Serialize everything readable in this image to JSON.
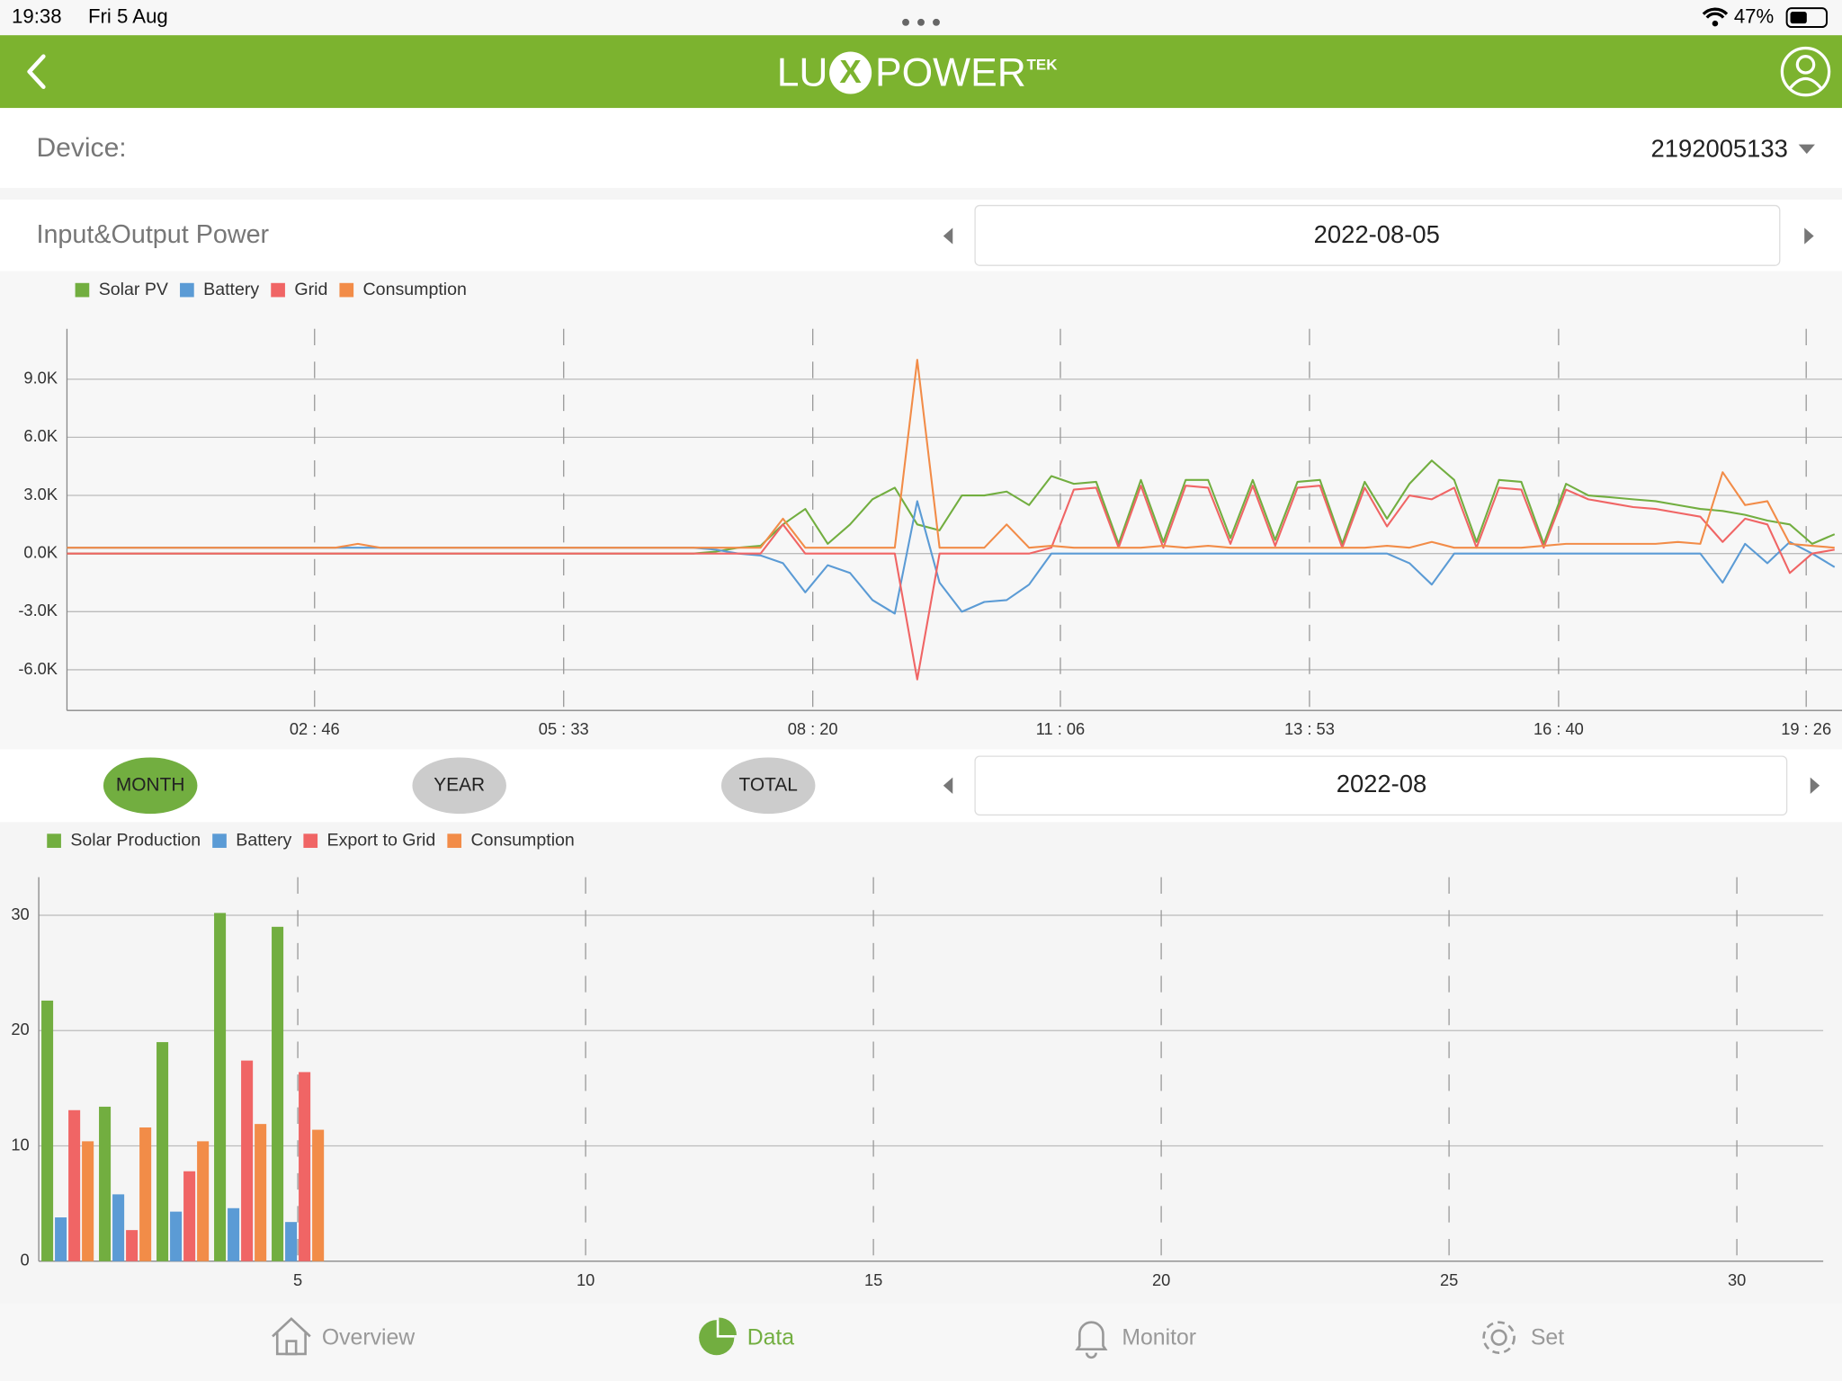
{
  "status_bar": {
    "time": "19:38",
    "date": "Fri 5 Aug",
    "battery": "47%"
  },
  "header": {
    "logo": [
      "LU",
      "X",
      "POWER"
    ],
    "logo_suffix": "TEK"
  },
  "device": {
    "label": "Device:",
    "id": "2192005133"
  },
  "power": {
    "title": "Input&Output Power",
    "date": "2022-08-05"
  },
  "period_tabs": [
    "MONTH",
    "YEAR",
    "TOTAL"
  ],
  "month_date": "2022-08",
  "nav": [
    "Overview",
    "Data",
    "Monitor",
    "Set"
  ],
  "chart_data": [
    {
      "type": "line",
      "x": [
        0,
        15,
        30,
        45,
        60,
        75,
        90,
        105,
        120,
        135,
        150,
        165,
        180,
        195,
        210,
        225,
        240,
        255,
        270,
        285,
        300,
        315,
        330,
        345,
        360,
        375,
        390,
        405,
        420,
        435,
        450,
        465,
        480,
        495,
        510,
        525,
        540,
        555,
        570,
        585,
        600,
        615,
        630,
        645,
        660,
        675,
        690,
        705,
        720,
        735,
        750,
        765,
        780,
        795,
        810,
        825,
        840,
        855,
        870,
        885,
        900,
        915,
        930,
        945,
        960,
        975,
        990,
        1005,
        1020,
        1035,
        1050,
        1065,
        1080,
        1095,
        1110,
        1125,
        1140,
        1155,
        1170,
        1185
      ],
      "xlim": [
        0,
        1190
      ],
      "xticks": [
        {
          "value": 166,
          "label": "02 : 46"
        },
        {
          "value": 333,
          "label": "05 : 33"
        },
        {
          "value": 500,
          "label": "08 : 20"
        },
        {
          "value": 666,
          "label": "11 : 06"
        },
        {
          "value": 833,
          "label": "13 : 53"
        },
        {
          "value": 1000,
          "label": "16 : 40"
        },
        {
          "value": 1166,
          "label": "19 : 26"
        }
      ],
      "ylim": [
        -8100,
        11600
      ],
      "yticks": [
        {
          "value": -6000,
          "label": "-6.0K"
        },
        {
          "value": -3000,
          "label": "-3.0K"
        },
        {
          "value": 0,
          "label": "0.0K"
        },
        {
          "value": 3000,
          "label": "3.0K"
        },
        {
          "value": 6000,
          "label": "6.0K"
        },
        {
          "value": 9000,
          "label": "9.0K"
        }
      ],
      "grid": true,
      "series": [
        {
          "name": "Solar PV",
          "color": "#72ae40",
          "values": [
            0,
            0,
            0,
            0,
            0,
            0,
            0,
            0,
            0,
            0,
            0,
            0,
            0,
            0,
            0,
            0,
            0,
            0,
            0,
            0,
            0,
            0,
            0,
            0,
            0,
            0,
            0,
            0,
            0,
            100,
            300,
            400,
            1500,
            2300,
            500,
            1500,
            2800,
            3400,
            1500,
            1200,
            3000,
            3000,
            3200,
            2500,
            4000,
            3600,
            3700,
            500,
            3800,
            600,
            3800,
            3800,
            800,
            3800,
            700,
            3700,
            3800,
            500,
            3700,
            1800,
            3600,
            4800,
            3800,
            600,
            3800,
            3700,
            500,
            3600,
            3000,
            2900,
            2800,
            2700,
            2500,
            2300,
            2200,
            2000,
            1700,
            1500,
            500,
            1000
          ]
        },
        {
          "name": "Battery",
          "color": "#5b9bd5",
          "values": [
            300,
            300,
            300,
            300,
            300,
            300,
            300,
            300,
            300,
            300,
            300,
            300,
            300,
            300,
            300,
            300,
            300,
            300,
            300,
            300,
            300,
            300,
            300,
            300,
            300,
            300,
            300,
            300,
            300,
            200,
            0,
            -100,
            -500,
            -2000,
            -600,
            -1000,
            -2400,
            -3100,
            2700,
            -1500,
            -3000,
            -2500,
            -2400,
            -1600,
            0,
            0,
            0,
            0,
            0,
            0,
            0,
            0,
            0,
            0,
            0,
            0,
            0,
            0,
            0,
            0,
            -500,
            -1600,
            0,
            0,
            0,
            0,
            0,
            0,
            0,
            0,
            0,
            0,
            0,
            0,
            -1500,
            500,
            -500,
            600,
            0,
            -700
          ]
        },
        {
          "name": "Grid",
          "color": "#f06565",
          "values": [
            0,
            0,
            0,
            0,
            0,
            0,
            0,
            0,
            0,
            0,
            0,
            0,
            0,
            0,
            0,
            0,
            0,
            0,
            0,
            0,
            0,
            0,
            0,
            0,
            0,
            0,
            0,
            0,
            0,
            0,
            0,
            0,
            1500,
            0,
            0,
            0,
            0,
            0,
            -6500,
            0,
            0,
            0,
            0,
            0,
            300,
            3300,
            3400,
            300,
            3500,
            300,
            3500,
            3400,
            500,
            3500,
            400,
            3400,
            3500,
            300,
            3400,
            1400,
            3000,
            2800,
            3400,
            300,
            3400,
            3300,
            300,
            3300,
            2800,
            2600,
            2400,
            2300,
            2100,
            1900,
            600,
            1800,
            1500,
            -1000,
            0,
            200
          ]
        },
        {
          "name": "Consumption",
          "color": "#f28c48",
          "values": [
            300,
            300,
            300,
            300,
            300,
            300,
            300,
            300,
            300,
            300,
            300,
            300,
            300,
            500,
            300,
            300,
            300,
            300,
            300,
            300,
            300,
            300,
            300,
            300,
            300,
            300,
            300,
            300,
            300,
            300,
            300,
            300,
            1800,
            300,
            300,
            300,
            300,
            300,
            10000,
            300,
            300,
            300,
            1500,
            300,
            400,
            300,
            300,
            300,
            300,
            400,
            300,
            400,
            300,
            300,
            300,
            300,
            300,
            300,
            300,
            400,
            300,
            600,
            300,
            300,
            300,
            300,
            400,
            500,
            500,
            500,
            500,
            500,
            600,
            500,
            4200,
            2500,
            2700,
            500,
            400,
            300
          ]
        }
      ]
    },
    {
      "type": "bar",
      "x": [
        1,
        2,
        3,
        4,
        5
      ],
      "xlim": [
        0.5,
        31.5
      ],
      "xticks": [
        5,
        10,
        15,
        20,
        25,
        30
      ],
      "ylim": [
        0,
        33.3
      ],
      "yticks": [
        0,
        10,
        20,
        30
      ],
      "grid": true,
      "series": [
        {
          "name": "Solar Production",
          "color": "#72ae40",
          "values": [
            22.6,
            13.4,
            19.0,
            30.2,
            29.0
          ]
        },
        {
          "name": "Battery",
          "color": "#5b9bd5",
          "values": [
            3.8,
            5.8,
            4.3,
            4.6,
            3.4
          ]
        },
        {
          "name": "Export to Grid",
          "color": "#f06565",
          "values": [
            13.1,
            2.7,
            7.8,
            17.4,
            16.4
          ]
        },
        {
          "name": "Consumption",
          "color": "#f28c48",
          "values": [
            10.4,
            11.6,
            10.4,
            11.9,
            11.4
          ]
        }
      ]
    }
  ]
}
